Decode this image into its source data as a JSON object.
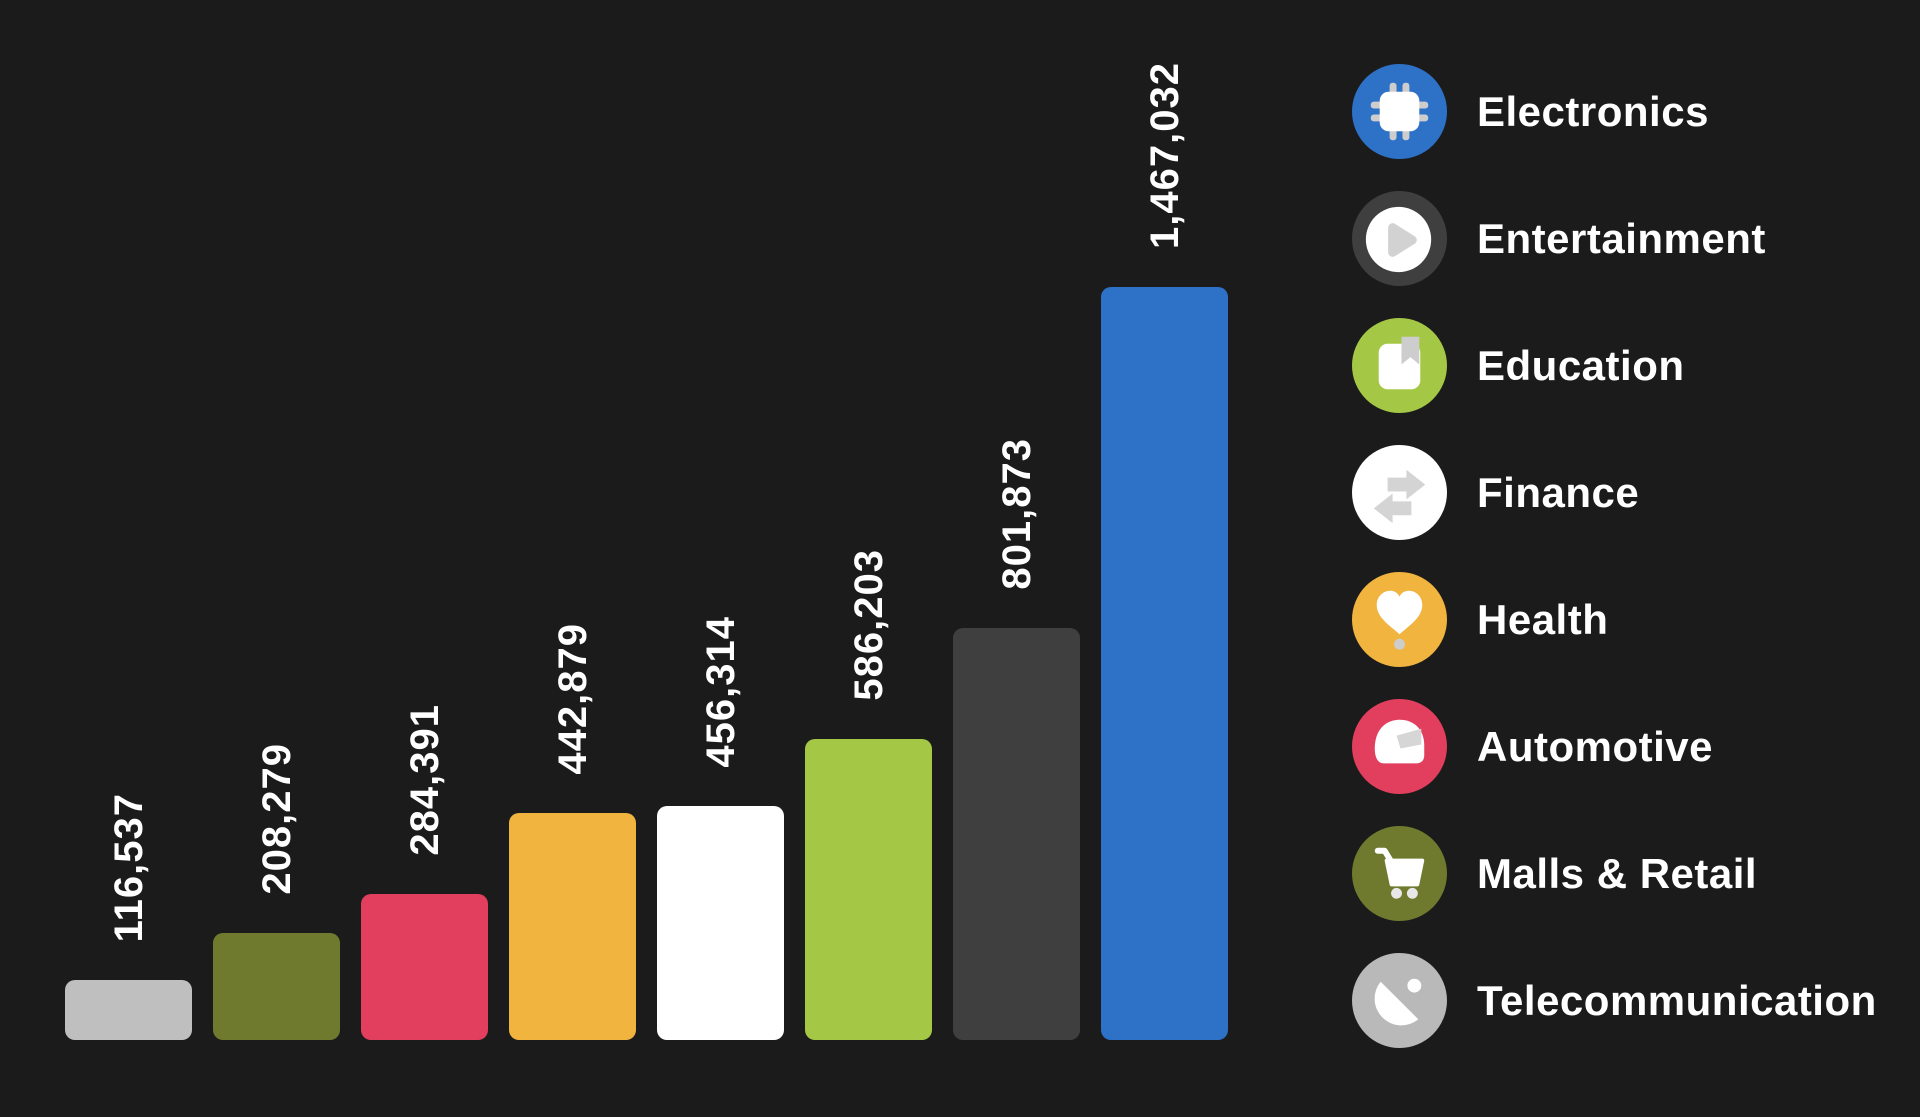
{
  "background_color": "#1b1b1b",
  "text_color": "#ffffff",
  "chart_data": {
    "type": "bar",
    "orientation": "vertical",
    "title": "",
    "xlabel": "",
    "ylabel": "",
    "grid": false,
    "axes_visible": false,
    "value_labels_rotated": true,
    "legend_position": "right",
    "max_value": 1467032,
    "categories": [
      "Telecommunication",
      "Malls & Retail",
      "Automotive",
      "Health",
      "Finance",
      "Education",
      "Entertainment",
      "Electronics"
    ],
    "values": [
      116537,
      208279,
      284391,
      442879,
      456314,
      586203,
      801873,
      1467032
    ],
    "value_labels": [
      "116,537",
      "208,279",
      "284,391",
      "442,879",
      "456,314",
      "586,203",
      "801,873",
      "1,467,032"
    ],
    "colors": [
      "#bfbfbf",
      "#6f7a2e",
      "#e23f5e",
      "#f0b43f",
      "#ffffff",
      "#a4c845",
      "#3f3f3f",
      "#2e72c8"
    ]
  },
  "legend": {
    "items": [
      {
        "label": "Electronics",
        "color": "#2e72c8",
        "icon": "chip-icon"
      },
      {
        "label": "Entertainment",
        "color": "#3f3f3f",
        "icon": "play-icon"
      },
      {
        "label": "Education",
        "color": "#a4c845",
        "icon": "book-icon"
      },
      {
        "label": "Finance",
        "color": "#ffffff",
        "icon": "transfer-arrows-icon"
      },
      {
        "label": "Health",
        "color": "#f0b43f",
        "icon": "heart-icon"
      },
      {
        "label": "Automotive",
        "color": "#e23f5e",
        "icon": "helmet-icon"
      },
      {
        "label": "Malls & Retail",
        "color": "#6f7a2e",
        "icon": "cart-icon"
      },
      {
        "label": "Telecommunication",
        "color": "#b9b9b9",
        "icon": "satellite-dish-icon"
      }
    ],
    "accent_gray": "#cdcdcd"
  }
}
